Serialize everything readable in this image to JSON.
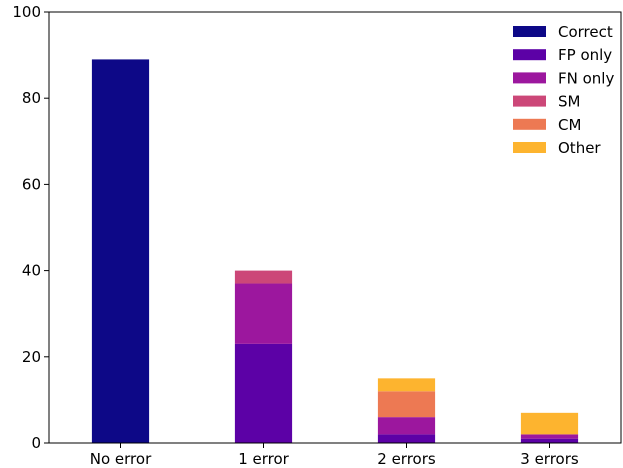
{
  "chart_data": {
    "type": "bar",
    "stacked": true,
    "categories": [
      "No error",
      "1 error",
      "2 errors",
      "3 errors"
    ],
    "series": [
      {
        "name": "Correct",
        "color": "#0d0887",
        "values": [
          89,
          0,
          0,
          0
        ]
      },
      {
        "name": "FP only",
        "color": "#5c01a6",
        "values": [
          0,
          23,
          2,
          1
        ]
      },
      {
        "name": "FN only",
        "color": "#9c179e",
        "values": [
          0,
          14,
          4,
          1
        ]
      },
      {
        "name": "SM",
        "color": "#cc4778",
        "values": [
          0,
          3,
          0,
          0
        ]
      },
      {
        "name": "CM",
        "color": "#ed7953",
        "values": [
          0,
          0,
          6,
          0
        ]
      },
      {
        "name": "Other",
        "color": "#fdb42f",
        "values": [
          0,
          0,
          3,
          5
        ]
      }
    ],
    "y_ticks": [
      "0",
      "20",
      "40",
      "60",
      "80",
      "100"
    ],
    "ylim": [
      0,
      100
    ],
    "grid": false,
    "legend_position": "top-right"
  }
}
